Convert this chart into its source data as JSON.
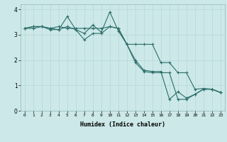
{
  "xlabel": "Humidex (Indice chaleur)",
  "xlim": [
    -0.5,
    23.5
  ],
  "ylim": [
    0,
    4.2
  ],
  "xticks": [
    0,
    1,
    2,
    3,
    4,
    5,
    6,
    7,
    8,
    9,
    10,
    11,
    12,
    13,
    14,
    15,
    16,
    17,
    18,
    19,
    20,
    21,
    22,
    23
  ],
  "yticks": [
    0,
    1,
    2,
    3,
    4
  ],
  "bg_color": "#cce8e8",
  "line_color": "#2d6e6a",
  "line1_x": [
    0,
    1,
    2,
    3,
    4,
    5,
    6,
    7,
    8,
    9,
    10,
    11,
    12,
    13,
    14,
    15,
    16,
    17,
    18,
    19,
    20,
    21,
    22,
    23
  ],
  "line1_y": [
    3.25,
    3.32,
    3.32,
    3.25,
    3.32,
    3.25,
    3.25,
    3.25,
    3.25,
    3.25,
    3.32,
    3.25,
    2.62,
    2.62,
    2.62,
    2.62,
    1.9,
    1.9,
    1.5,
    1.5,
    0.85,
    0.88,
    0.85,
    0.72
  ],
  "line2_x": [
    0,
    1,
    2,
    3,
    4,
    5,
    6,
    7,
    8,
    9,
    10,
    11,
    12,
    13,
    14,
    15,
    16,
    17,
    18,
    19,
    20,
    21,
    22,
    23
  ],
  "line2_y": [
    3.25,
    3.32,
    3.32,
    3.2,
    3.2,
    3.72,
    3.2,
    3.05,
    3.38,
    3.1,
    3.9,
    3.15,
    2.62,
    1.9,
    1.55,
    1.5,
    1.5,
    1.5,
    0.45,
    0.45,
    0.65,
    0.85,
    0.85,
    0.72
  ],
  "line3_x": [
    0,
    1,
    2,
    3,
    4,
    5,
    6,
    7,
    8,
    9,
    10,
    11,
    12,
    13,
    14,
    15,
    16,
    17,
    18,
    19,
    20,
    21,
    22,
    23
  ],
  "line3_y": [
    3.25,
    3.25,
    3.32,
    3.25,
    3.2,
    3.32,
    3.2,
    2.8,
    3.05,
    3.05,
    3.32,
    3.25,
    2.62,
    2.0,
    1.6,
    1.55,
    1.55,
    0.45,
    0.75,
    0.5,
    0.65,
    0.85,
    0.85,
    0.72
  ],
  "grid_color": "#b8d8d8",
  "figsize": [
    3.2,
    2.0
  ],
  "dpi": 100
}
